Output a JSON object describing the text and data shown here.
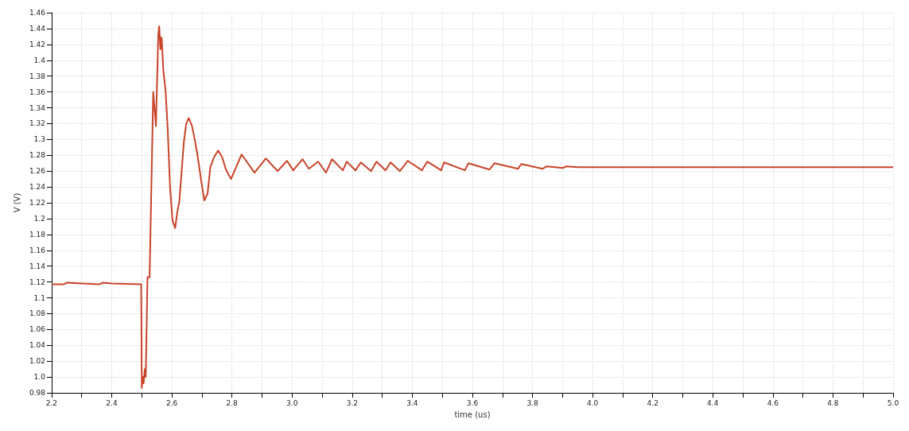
{
  "chart_data": {
    "type": "line",
    "xlabel": "time (us)",
    "ylabel": "V (V)",
    "x": [
      2.2,
      2.24,
      2.25,
      2.3,
      2.36,
      2.37,
      2.4,
      2.498,
      2.499,
      2.5,
      2.503,
      2.506,
      2.51,
      2.513,
      2.519,
      2.526,
      2.532,
      2.538,
      2.547,
      2.555,
      2.558,
      2.562,
      2.566,
      2.572,
      2.579,
      2.586,
      2.594,
      2.602,
      2.611,
      2.618,
      2.625,
      2.633,
      2.64,
      2.648,
      2.656,
      2.667,
      2.676,
      2.685,
      2.698,
      2.708,
      2.719,
      2.728,
      2.741,
      2.754,
      2.767,
      2.78,
      2.797,
      2.832,
      2.875,
      2.913,
      2.952,
      2.983,
      3.004,
      3.035,
      3.056,
      3.087,
      3.113,
      3.133,
      3.169,
      3.182,
      3.211,
      3.229,
      3.263,
      3.281,
      3.311,
      3.328,
      3.359,
      3.385,
      3.432,
      3.45,
      3.496,
      3.506,
      3.575,
      3.587,
      3.657,
      3.674,
      3.752,
      3.763,
      3.834,
      3.847,
      3.903,
      3.911,
      3.955,
      4.2,
      4.6,
      5.0
    ],
    "series": [
      {
        "color": "#c8442a",
        "values": [
          1.117,
          1.117,
          1.119,
          1.118,
          1.117,
          1.119,
          1.118,
          1.117,
          1.05,
          0.986,
          1.0,
          0.992,
          1.01,
          1.0,
          1.126,
          1.126,
          1.243,
          1.36,
          1.317,
          1.433,
          1.443,
          1.414,
          1.429,
          1.385,
          1.362,
          1.315,
          1.24,
          1.198,
          1.188,
          1.208,
          1.222,
          1.262,
          1.297,
          1.32,
          1.327,
          1.317,
          1.3,
          1.281,
          1.247,
          1.223,
          1.232,
          1.265,
          1.278,
          1.286,
          1.278,
          1.262,
          1.25,
          1.281,
          1.258,
          1.276,
          1.26,
          1.273,
          1.261,
          1.275,
          1.263,
          1.272,
          1.258,
          1.275,
          1.261,
          1.272,
          1.261,
          1.271,
          1.26,
          1.272,
          1.261,
          1.271,
          1.26,
          1.273,
          1.261,
          1.272,
          1.261,
          1.271,
          1.261,
          1.27,
          1.262,
          1.27,
          1.263,
          1.269,
          1.263,
          1.266,
          1.264,
          1.266,
          1.265,
          1.265,
          1.265,
          1.265
        ]
      }
    ],
    "xlim": [
      2.2,
      5.0
    ],
    "xticks": [
      2.2,
      {
        "value": 2.3,
        "label": null
      },
      2.4,
      {
        "value": 2.5,
        "label": null
      },
      2.6,
      {
        "value": 2.7,
        "label": null
      },
      2.8,
      {
        "value": 2.9,
        "label": null
      },
      {
        "value": 3,
        "label": "3.0"
      },
      {
        "value": 3.1,
        "label": null
      },
      3.2,
      {
        "value": 3.3,
        "label": null
      },
      3.4,
      {
        "value": 3.5,
        "label": null
      },
      3.6,
      {
        "value": 3.7,
        "label": null
      },
      3.8,
      {
        "value": 3.9,
        "label": null
      },
      {
        "value": 4,
        "label": "4.0"
      },
      {
        "value": 4.1,
        "label": null
      },
      4.2,
      {
        "value": 4.3,
        "label": null
      },
      4.4,
      {
        "value": 4.5,
        "label": null
      },
      4.6,
      {
        "value": 4.7,
        "label": null
      },
      4.8,
      {
        "value": 4.9,
        "label": null
      },
      {
        "value": 5,
        "label": "5.0"
      }
    ],
    "ylim": [
      0.98,
      1.46
    ],
    "yticks": [
      0.98,
      {
        "value": 1,
        "label": "1.0"
      },
      1.02,
      1.04,
      1.06,
      1.08,
      1.1,
      1.12,
      1.14,
      1.16,
      1.18,
      1.2,
      1.22,
      1.24,
      1.26,
      1.28,
      1.3,
      1.32,
      1.34,
      1.36,
      1.38,
      1.4,
      1.42,
      1.44,
      1.46
    ],
    "grid": true,
    "marker": "none",
    "line_style": "solid"
  }
}
